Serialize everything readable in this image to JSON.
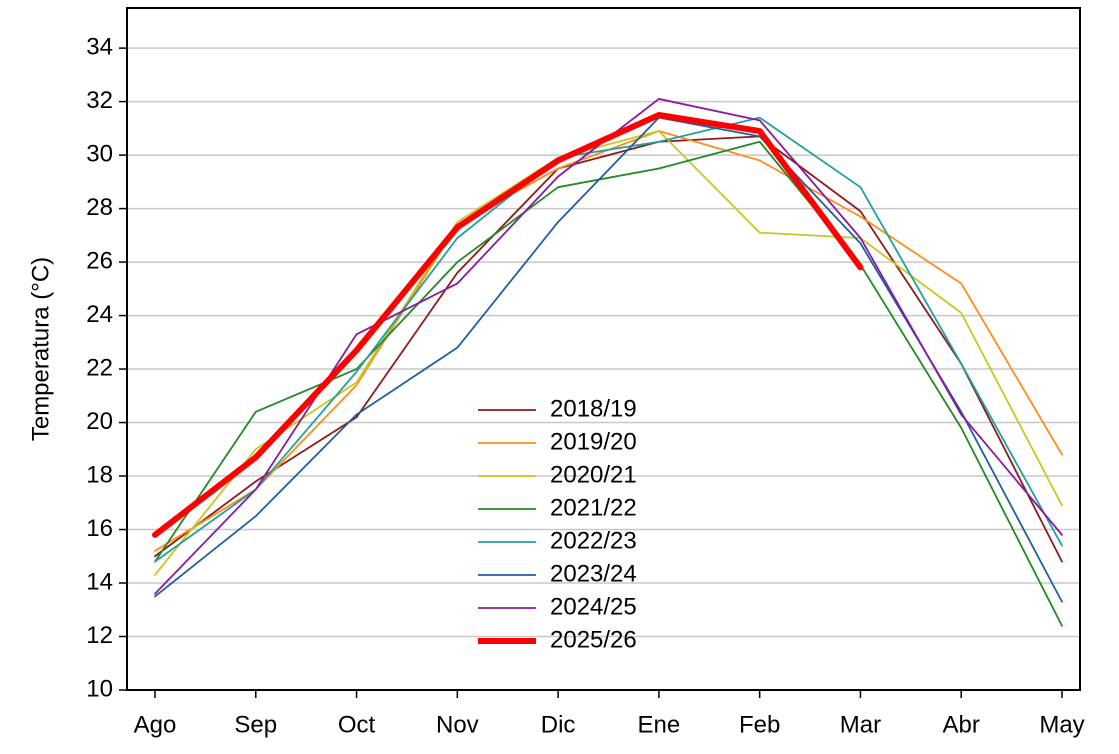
{
  "chart_data": {
    "type": "line",
    "y_label": "Temperatura (°C)",
    "categories": [
      "Ago",
      "Sep",
      "Oct",
      "Nov",
      "Dic",
      "Ene",
      "Feb",
      "Mar",
      "Abr",
      "May"
    ],
    "ylim": [
      10,
      35.5
    ],
    "yticks": [
      10,
      12,
      14,
      16,
      18,
      20,
      22,
      24,
      26,
      28,
      30,
      32,
      34
    ],
    "grid": true,
    "series": [
      {
        "name": "2018/19",
        "color": "#8b1c1c",
        "linewidth": 1.8,
        "values": [
          15.0,
          17.8,
          20.2,
          25.6,
          29.5,
          30.5,
          30.7,
          27.9,
          22.2,
          14.8
        ]
      },
      {
        "name": "2019/20",
        "color": "#ff8c1a",
        "linewidth": 1.8,
        "values": [
          15.2,
          17.5,
          21.4,
          27.4,
          29.5,
          30.9,
          29.8,
          27.7,
          25.2,
          18.8
        ]
      },
      {
        "name": "2020/21",
        "color": "#c8c81e",
        "linewidth": 1.8,
        "values": [
          14.3,
          19.0,
          21.5,
          27.5,
          29.9,
          30.9,
          27.1,
          26.9,
          24.1,
          16.9
        ]
      },
      {
        "name": "2021/22",
        "color": "#228b22",
        "linewidth": 1.8,
        "values": [
          14.8,
          20.4,
          22.0,
          26.0,
          28.8,
          29.5,
          30.5,
          25.9,
          19.8,
          12.4
        ]
      },
      {
        "name": "2022/23",
        "color": "#20a0a0",
        "linewidth": 1.8,
        "values": [
          14.8,
          17.5,
          21.9,
          26.9,
          29.9,
          30.5,
          31.4,
          28.8,
          22.2,
          15.4
        ]
      },
      {
        "name": "2023/24",
        "color": "#1f5fa0",
        "linewidth": 1.8,
        "values": [
          13.5,
          16.5,
          20.3,
          22.8,
          27.5,
          31.4,
          30.7,
          26.7,
          20.4,
          13.3
        ]
      },
      {
        "name": "2024/25",
        "color": "#8b1aa0",
        "linewidth": 1.8,
        "values": [
          13.6,
          17.5,
          23.3,
          25.2,
          29.2,
          32.1,
          31.3,
          26.9,
          20.3,
          15.8
        ]
      },
      {
        "name": "2025/26",
        "color": "#ff0000",
        "linewidth": 6,
        "values": [
          15.8,
          18.7,
          22.7,
          27.3,
          29.8,
          31.5,
          30.9,
          25.8,
          null,
          null
        ]
      }
    ]
  }
}
